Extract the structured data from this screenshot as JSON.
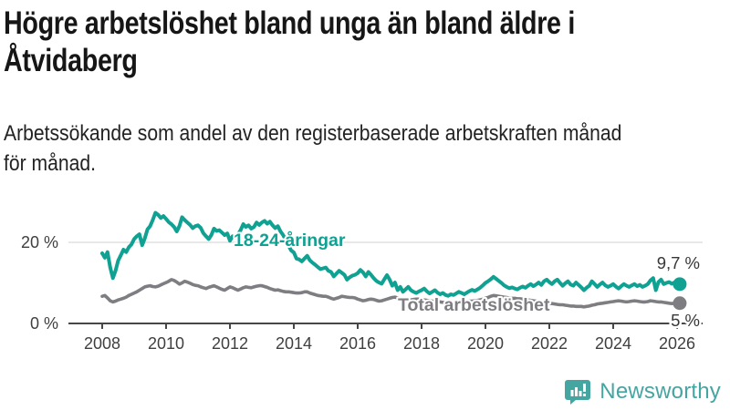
{
  "header": {
    "title": "Högre arbetslöshet bland unga än bland äldre i\nÅtvidaberg",
    "subtitle": "Arbetssökande som andel av den registerbaserade arbetskraften månad\nför månad."
  },
  "chart_data": {
    "type": "line",
    "unit": "%",
    "x_start": "2008-01",
    "x_end": "2026-02",
    "x_ticks": [
      2008,
      2010,
      2012,
      2014,
      2016,
      2018,
      2020,
      2022,
      2024,
      2026
    ],
    "y_ticks": [
      {
        "value": 0,
        "label": "0 %"
      },
      {
        "value": 20,
        "label": "20 %"
      }
    ],
    "ylim": [
      0,
      30
    ],
    "grid": "horizontal-20-only",
    "legend_position": "inline-labels",
    "colors": {
      "youth": "#0FA192",
      "total": "#7E7E82",
      "grid": "#D9D9D9",
      "axis": "#474747"
    },
    "series": [
      {
        "name": "18-24-åringar",
        "color": "#0FA192",
        "end_label": "9,7 %",
        "end_value": 9.7,
        "values": [
          17.3,
          16.2,
          17.6,
          13.8,
          11.2,
          13.0,
          15.5,
          16.8,
          18.2,
          17.6,
          18.8,
          19.5,
          20.8,
          21.5,
          22.0,
          19.3,
          21.0,
          23.2,
          24.0,
          25.5,
          27.3,
          26.8,
          26.0,
          26.5,
          25.8,
          25.0,
          24.5,
          23.8,
          22.7,
          24.0,
          26.2,
          25.5,
          24.9,
          24.3,
          23.5,
          24.0,
          24.2,
          23.6,
          22.3,
          21.5,
          20.8,
          21.8,
          23.4,
          22.8,
          23.0,
          22.4,
          21.8,
          22.2,
          20.4,
          21.5,
          21.2,
          22.0,
          23.0,
          24.5,
          23.8,
          24.2,
          23.4,
          23.8,
          24.9,
          24.3,
          24.9,
          25.3,
          24.6,
          25.1,
          24.2,
          23.5,
          24.0,
          22.7,
          21.8,
          20.5,
          19.2,
          18.0,
          17.5,
          16.0,
          15.8,
          15.3,
          16.0,
          16.7,
          15.6,
          15.0,
          14.5,
          13.9,
          13.4,
          13.6,
          13.8,
          13.0,
          12.7,
          11.6,
          12.3,
          13.0,
          12.5,
          12.0,
          10.8,
          11.4,
          11.8,
          12.0,
          12.4,
          13.2,
          12.6,
          11.6,
          12.7,
          12.0,
          11.2,
          10.5,
          10.1,
          9.8,
          10.9,
          11.9,
          10.8,
          9.3,
          10.1,
          8.2,
          9.0,
          7.8,
          8.4,
          9.0,
          8.2,
          7.8,
          7.5,
          7.9,
          8.2,
          8.6,
          7.9,
          7.4,
          7.8,
          8.2,
          7.6,
          7.2,
          7.5,
          7.0,
          6.8,
          7.2,
          7.0,
          7.4,
          7.8,
          7.5,
          7.2,
          7.6,
          8.0,
          8.3,
          8.0,
          8.4,
          8.8,
          9.4,
          10.0,
          10.4,
          10.9,
          11.5,
          11.0,
          10.5,
          10.0,
          9.4,
          9.0,
          8.7,
          8.9,
          8.6,
          8.4,
          8.8,
          9.1,
          8.8,
          9.3,
          9.7,
          9.2,
          9.6,
          10.1,
          9.5,
          10.4,
          10.8,
          10.2,
          9.7,
          10.4,
          10.8,
          10.0,
          9.3,
          9.9,
          10.4,
          9.6,
          9.3,
          10.1,
          9.5,
          8.9,
          8.2,
          8.8,
          9.3,
          10.4,
          9.7,
          9.0,
          9.6,
          10.1,
          9.4,
          9.0,
          9.3,
          9.7,
          9.1,
          8.6,
          9.2,
          9.7,
          9.3,
          9.0,
          9.4,
          9.7,
          9.2,
          9.5,
          9.0,
          9.3,
          9.7,
          10.6,
          11.2,
          8.2,
          10.2,
          10.8,
          9.7,
          10.0,
          10.2,
          9.8,
          10.1,
          9.9,
          9.7
        ]
      },
      {
        "name": "Total arbetslöshet",
        "color": "#7E7E82",
        "end_label": "5 %",
        "end_value": 5.0,
        "values": [
          6.7,
          6.9,
          6.3,
          5.6,
          5.3,
          5.5,
          5.8,
          6.0,
          6.2,
          6.5,
          6.9,
          7.2,
          7.5,
          7.8,
          8.2,
          8.6,
          9.0,
          9.2,
          9.3,
          9.1,
          9.0,
          9.2,
          9.5,
          9.8,
          10.1,
          10.4,
          10.8,
          10.6,
          10.2,
          9.7,
          10.0,
          10.4,
          10.2,
          9.9,
          9.6,
          9.4,
          9.3,
          9.0,
          8.8,
          8.6,
          8.9,
          9.1,
          9.3,
          9.0,
          8.7,
          8.4,
          8.2,
          8.6,
          9.0,
          8.8,
          8.5,
          8.2,
          8.5,
          8.8,
          9.0,
          8.9,
          8.8,
          9.0,
          9.2,
          9.3,
          9.3,
          9.1,
          8.9,
          8.6,
          8.4,
          8.2,
          8.3,
          8.1,
          7.9,
          7.8,
          7.8,
          7.7,
          7.6,
          7.5,
          7.5,
          7.6,
          7.8,
          7.8,
          7.5,
          7.3,
          7.1,
          6.9,
          6.8,
          6.7,
          6.7,
          6.5,
          6.2,
          6.0,
          6.2,
          6.4,
          6.7,
          6.6,
          6.5,
          6.4,
          6.4,
          6.3,
          6.0,
          5.8,
          5.6,
          5.7,
          5.9,
          6.0,
          5.9,
          5.7,
          5.5,
          5.6,
          5.8,
          6.0,
          6.2,
          6.4,
          6.5,
          6.3,
          6.1,
          6.0,
          5.9,
          5.8,
          5.8,
          5.9,
          6.0,
          6.0,
          5.9,
          5.8,
          5.7,
          5.6,
          5.5,
          5.4,
          5.4,
          5.3,
          5.2,
          5.2,
          5.1,
          5.1,
          5.1,
          5.2,
          5.2,
          5.3,
          5.3,
          5.4,
          5.5,
          5.5,
          5.6,
          5.7,
          5.8,
          6.0,
          6.2,
          6.4,
          6.7,
          6.9,
          6.8,
          6.7,
          6.6,
          6.5,
          6.4,
          6.3,
          6.2,
          6.2,
          6.1,
          6.1,
          6.0,
          5.9,
          5.8,
          5.7,
          5.6,
          5.5,
          5.4,
          5.3,
          5.2,
          5.1,
          5.0,
          4.9,
          4.8,
          4.7,
          4.6,
          4.6,
          4.5,
          4.4,
          4.3,
          4.3,
          4.2,
          4.2,
          4.2,
          4.1,
          4.2,
          4.3,
          4.5,
          4.6,
          4.8,
          4.9,
          5.0,
          5.1,
          5.2,
          5.3,
          5.4,
          5.5,
          5.6,
          5.5,
          5.4,
          5.3,
          5.4,
          5.5,
          5.6,
          5.5,
          5.4,
          5.3,
          5.3,
          5.4,
          5.6,
          5.5,
          5.4,
          5.3,
          5.3,
          5.2,
          5.1,
          5.0,
          4.9,
          5.0,
          5.0,
          5.0
        ]
      }
    ]
  },
  "footer": {
    "brand": "Newsworthy"
  }
}
